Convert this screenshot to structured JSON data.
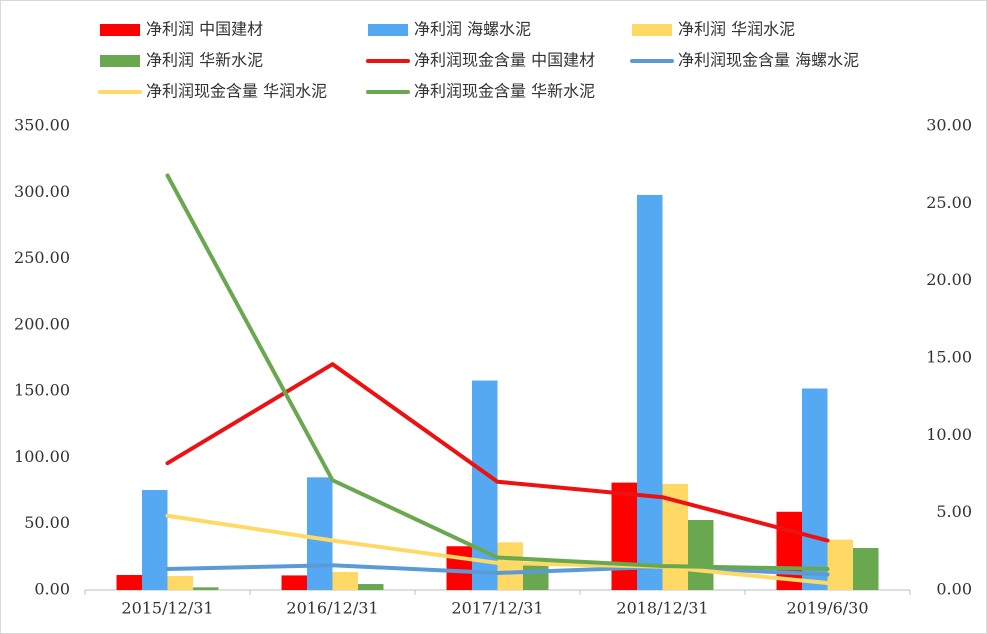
{
  "chart_data": {
    "type": "bar-line",
    "categories": [
      "2015/12/31",
      "2016/12/31",
      "2017/12/31",
      "2018/12/31",
      "2019/6/30"
    ],
    "series": [
      {
        "name": "净利润 中国建材",
        "type": "bar",
        "color": "#ff0000",
        "values": [
          11.3,
          11,
          33,
          81,
          59
        ]
      },
      {
        "name": "净利润 海螺水泥",
        "type": "bar",
        "color": "#55a8f2",
        "values": [
          75.4,
          85,
          158,
          298,
          152
        ]
      },
      {
        "name": "净利润 华润水泥",
        "type": "bar",
        "color": "#ffd966",
        "values": [
          10.5,
          13.6,
          36,
          80,
          38
        ]
      },
      {
        "name": "净利润 华新水泥",
        "type": "bar",
        "color": "#6aa84f",
        "values": [
          2,
          4.5,
          19.6,
          52.8,
          31.7
        ]
      },
      {
        "name": "净利润现金含量 中国建材",
        "type": "line",
        "axis": "y2",
        "color": "#ee1111",
        "values": [
          8.2,
          14.6,
          7.0,
          6.0,
          3.2
        ]
      },
      {
        "name": "净利润现金含量 海螺水泥",
        "type": "line",
        "axis": "y2",
        "color": "#5b9bd5",
        "values": [
          1.36,
          1.6,
          1.1,
          1.5,
          1.0
        ]
      },
      {
        "name": "净利润现金含量 华润水泥",
        "type": "line",
        "axis": "y2",
        "color": "#ffd966",
        "values": [
          4.8,
          3.2,
          1.75,
          1.5,
          0.45
        ]
      },
      {
        "name": "净利润现金含量 华新水泥",
        "type": "line",
        "axis": "y2",
        "color": "#6aa84f",
        "values": [
          26.8,
          7.1,
          2.1,
          1.55,
          1.36
        ]
      }
    ],
    "ylim": [
      0,
      350
    ],
    "yticks": [
      {
        "value": 0,
        "label": "0.00"
      },
      {
        "value": 50,
        "label": "50.00"
      },
      {
        "value": 100,
        "label": "100.00"
      },
      {
        "value": 150,
        "label": "150.00"
      },
      {
        "value": 200,
        "label": "200.00"
      },
      {
        "value": 250,
        "label": "250.00"
      },
      {
        "value": 300,
        "label": "300.00"
      },
      {
        "value": 350,
        "label": "350.00"
      }
    ],
    "y2lim": [
      0,
      30
    ],
    "y2ticks": [
      {
        "value": 0,
        "label": "0.00"
      },
      {
        "value": 5,
        "label": "5.00"
      },
      {
        "value": 10,
        "label": "10.00"
      },
      {
        "value": 15,
        "label": "15.00"
      },
      {
        "value": 20,
        "label": "20.00"
      },
      {
        "value": 25,
        "label": "25.00"
      },
      {
        "value": 30,
        "label": "30.00"
      }
    ],
    "legend": "top"
  }
}
